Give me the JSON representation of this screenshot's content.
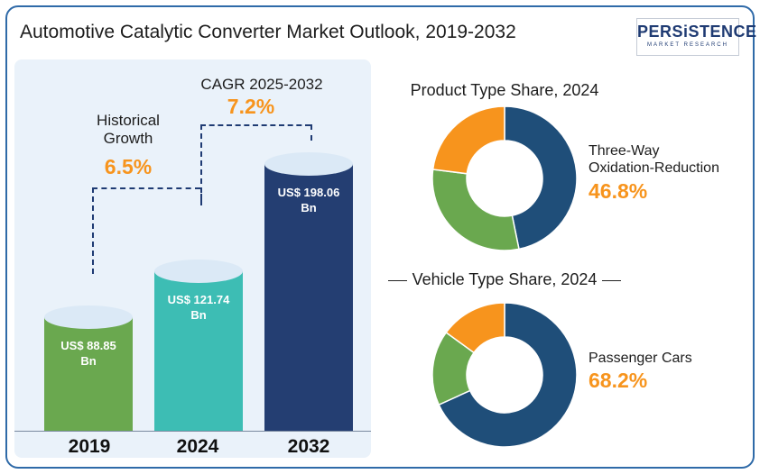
{
  "title": "Automotive Catalytic Converter Market Outlook, 2019-2032",
  "logo": {
    "main": "PERSiSTENCE",
    "sub": "MARKET RESEARCH"
  },
  "annotations": {
    "historical_label_line1": "Historical",
    "historical_label_line2": "Growth",
    "historical_value": "6.5%",
    "cagr_label": "CAGR 2025-2032",
    "cagr_value": "7.2%"
  },
  "product_share": {
    "title": "Product Type Share, 2024",
    "highlight_label_line1": "Three-Way",
    "highlight_label_line2": "Oxidation-Reduction",
    "highlight_value": "46.8%"
  },
  "vehicle_share": {
    "title": "Vehicle Type Share, 2024",
    "highlight_label": "Passenger Cars",
    "highlight_value": "68.2%"
  },
  "colors": {
    "bar_2019": "#6aa84f",
    "bar_2024": "#3dbdb4",
    "bar_2032": "#243e72",
    "accent": "#f7941d",
    "donut_blue": "#1f4e79",
    "donut_green": "#6aa84f",
    "donut_orange": "#f7941d"
  },
  "chart_data": [
    {
      "type": "bar",
      "title": "",
      "categories": [
        "2019",
        "2024",
        "2032"
      ],
      "values": [
        88.85,
        121.74,
        198.06
      ],
      "value_labels": [
        "US$ 88.85",
        "US$ 121.74",
        "US$ 198.06"
      ],
      "value_unit_labels": [
        "Bn",
        "Bn",
        "Bn"
      ],
      "ylim": [
        0,
        220
      ]
    },
    {
      "type": "pie",
      "title": "Product Type Share, 2024",
      "slices": [
        {
          "label": "Three-Way Oxidation-Reduction",
          "value": 46.8,
          "color": "#1f4e79"
        },
        {
          "label": "",
          "value": 30.2,
          "color": "#6aa84f"
        },
        {
          "label": "",
          "value": 23.0,
          "color": "#f7941d"
        }
      ]
    },
    {
      "type": "pie",
      "title": "Vehicle Type Share, 2024",
      "slices": [
        {
          "label": "Passenger Cars",
          "value": 68.2,
          "color": "#1f4e79"
        },
        {
          "label": "",
          "value": 16.8,
          "color": "#6aa84f"
        },
        {
          "label": "",
          "value": 15.0,
          "color": "#f7941d"
        }
      ]
    }
  ]
}
